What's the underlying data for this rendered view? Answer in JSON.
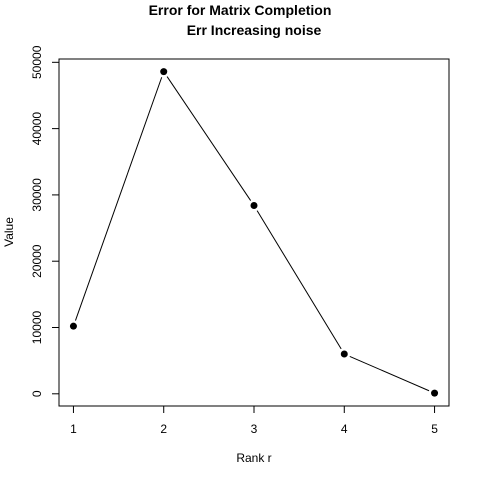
{
  "chart_data": {
    "type": "line",
    "title": "Error for Matrix Completion",
    "subtitle": "Err Increasing noise",
    "xlabel": "Rank r",
    "ylabel": "Value",
    "x": [
      1,
      2,
      3,
      4,
      5
    ],
    "series": [
      {
        "values": [
          10200,
          48600,
          28400,
          6000,
          100
        ]
      }
    ],
    "xticks": [
      "1",
      "2",
      "3",
      "4",
      "5"
    ],
    "yticks": [
      "0",
      "10000",
      "20000",
      "30000",
      "40000",
      "50000"
    ],
    "xlim": [
      0.84,
      5.16
    ],
    "ylim": [
      -1840,
      50500
    ],
    "grid": false,
    "legend": "none",
    "colors": {
      "line": "#000000",
      "marker": "#000000",
      "axis": "#000000"
    }
  }
}
